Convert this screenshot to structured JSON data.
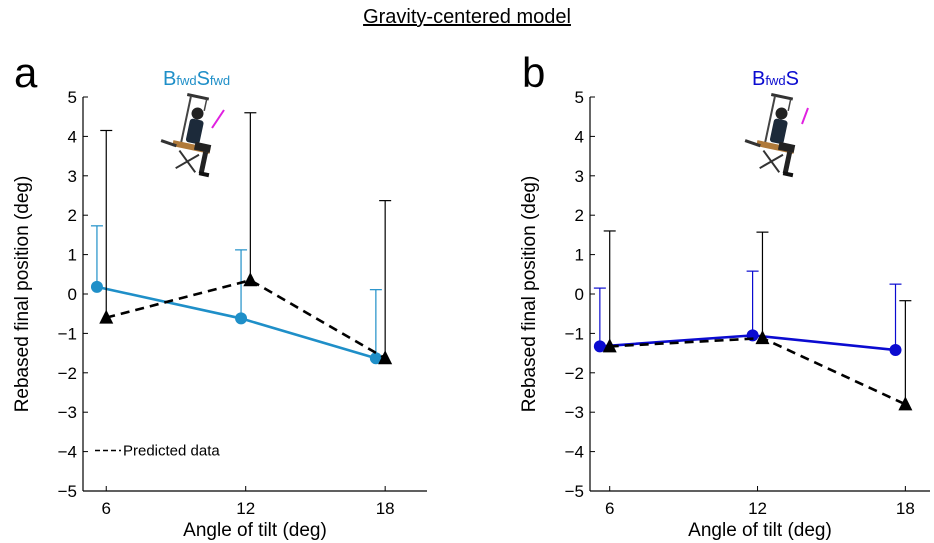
{
  "figure_title": "Gravity-centered model",
  "legend_text": "Predicted data",
  "chart_data": [
    {
      "type": "line",
      "panel_label": "a",
      "condition_label": {
        "b": "B",
        "b_sub": "fwd",
        "s": "S",
        "s_sub": "fwd"
      },
      "condition_color": "#1f8fc8",
      "xlabel": "Angle of tilt (deg)",
      "ylabel": "Rebased final position (deg)",
      "x_ticks": [
        6,
        12,
        18
      ],
      "y_ticks": [
        5,
        4,
        3,
        2,
        1,
        0,
        -1,
        -2,
        -3,
        -4,
        -5
      ],
      "ylim": [
        -5,
        5
      ],
      "series": [
        {
          "style": "solid",
          "marker": "circle",
          "color": "#1f8fc8",
          "points": [
            {
              "x": 5.6,
              "y": 0.18,
              "err_upper": 1.73
            },
            {
              "x": 11.8,
              "y": -0.62,
              "err_upper": 1.12
            },
            {
              "x": 17.6,
              "y": -1.63,
              "err_upper": 0.11
            }
          ]
        },
        {
          "name": "Predicted data",
          "style": "dashed",
          "marker": "triangle",
          "color": "#000000",
          "points": [
            {
              "x": 6.0,
              "y": -0.6,
              "err_upper": 4.15
            },
            {
              "x": 12.2,
              "y": 0.35,
              "err_upper": 4.6
            },
            {
              "x": 18.0,
              "y": -1.63,
              "err_upper": 2.37
            }
          ]
        }
      ]
    },
    {
      "type": "line",
      "panel_label": "b",
      "condition_label": {
        "b": "B",
        "b_sub": "fwd",
        "s": "S",
        "s_sub": ""
      },
      "condition_color": "#0b0bd0",
      "xlabel": "Angle of tilt (deg)",
      "ylabel": "Rebased final position (deg)",
      "x_ticks": [
        6,
        12,
        18
      ],
      "y_ticks": [
        5,
        4,
        3,
        2,
        1,
        0,
        -1,
        -2,
        -3,
        -4,
        -5
      ],
      "ylim": [
        -5,
        5
      ],
      "series": [
        {
          "style": "solid",
          "marker": "circle",
          "color": "#0b0bd0",
          "points": [
            {
              "x": 5.6,
              "y": -1.33,
              "err_upper": 0.15
            },
            {
              "x": 11.8,
              "y": -1.05,
              "err_upper": 0.58
            },
            {
              "x": 17.6,
              "y": -1.42,
              "err_upper": 0.25
            }
          ]
        },
        {
          "name": "Predicted data",
          "style": "dashed",
          "marker": "triangle",
          "color": "#000000",
          "points": [
            {
              "x": 6.0,
              "y": -1.33,
              "err_upper": 1.6
            },
            {
              "x": 12.2,
              "y": -1.12,
              "err_upper": 1.57
            },
            {
              "x": 18.0,
              "y": -2.8,
              "err_upper": -0.17
            }
          ]
        }
      ]
    }
  ]
}
